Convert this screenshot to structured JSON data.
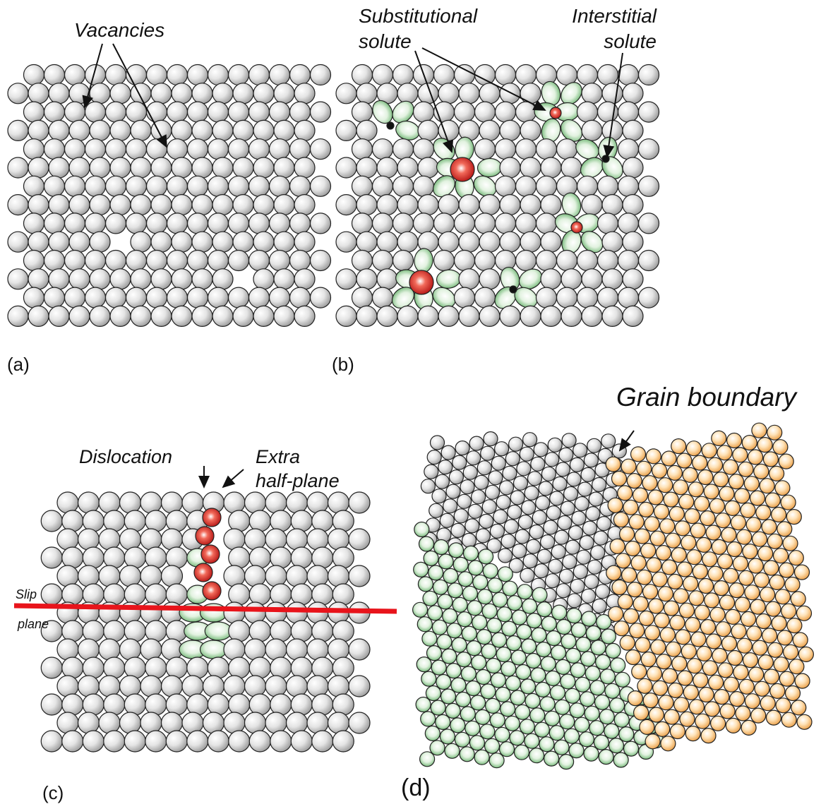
{
  "panels": [
    {
      "label": "(a)",
      "annotations": [
        {
          "lines": [
            "Vacancies"
          ]
        }
      ]
    },
    {
      "label": "(b)",
      "annotations": [
        {
          "lines": [
            "Substitutional",
            "solute"
          ]
        },
        {
          "lines": [
            "Interstitial",
            "solute"
          ]
        }
      ]
    },
    {
      "label": "(c)",
      "annotations": [
        {
          "lines": [
            "Dislocation"
          ]
        },
        {
          "lines": [
            "Extra",
            "half-plane"
          ]
        },
        {
          "lines": [
            "Slip"
          ]
        },
        {
          "lines": [
            "plane"
          ]
        }
      ]
    },
    {
      "label": "(d)",
      "annotations": [
        {
          "lines": [
            "Grain boundary"
          ]
        }
      ]
    }
  ]
}
